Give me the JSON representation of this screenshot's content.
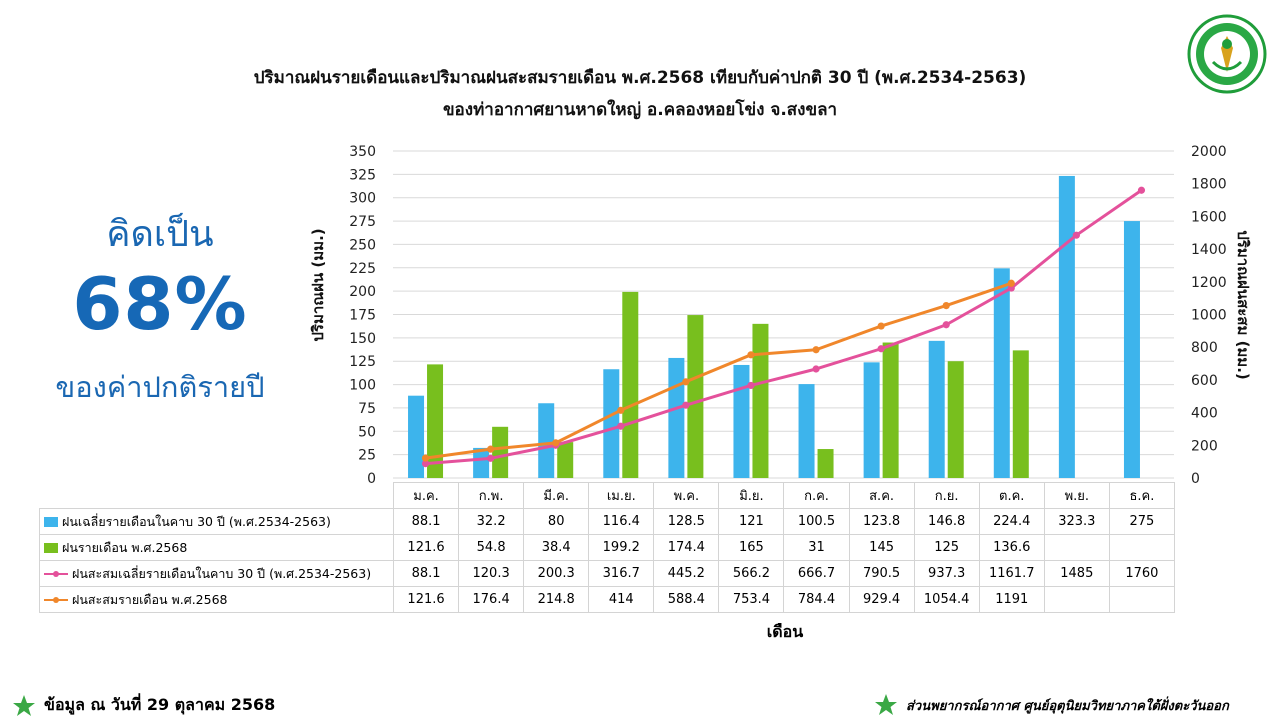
{
  "title": {
    "line1": "ปริมาณฝนรายเดือนและปริมาณฝนสะสมรายเดือน  พ.ศ.2568  เทียบกับค่าปกติ 30 ปี (พ.ศ.2534-2563)",
    "line2": "ของท่าอากาศยานหาดใหญ่  อ.คลองหอยโข่ง  จ.สงขลา"
  },
  "summary": {
    "prefix": "คิดเป็น",
    "percent": "68%",
    "suffix": "ของค่าปกติรายปี",
    "color": "#1a67b2"
  },
  "footer": {
    "left": "ข้อมูล ณ วันที่ 29 ตุลาคม 2568",
    "right": "ส่วนพยากรณ์อากาศ ศูนย์อุตุนิยมวิทยาภาคใต้ฝั่งตะวันออก",
    "icon": "green-star-icon"
  },
  "logo": {
    "icon": "tmd-emblem-icon",
    "color": "#1f9d3a"
  },
  "chart_data": {
    "type": "bar",
    "title": "ปริมาณฝนรายเดือนและปริมาณฝนสะสมรายเดือน  พ.ศ.2568  เทียบกับค่าปกติ 30 ปี (พ.ศ.2534-2563)",
    "xlabel": "เดือน",
    "ylabel": "ปริมาณฝน (มม.)",
    "y2label": "ปริมาณฝนสะสม (มม.)",
    "ylim": [
      0,
      350
    ],
    "yticks": [
      0,
      25,
      50,
      75,
      100,
      125,
      150,
      175,
      200,
      225,
      250,
      275,
      300,
      325,
      350
    ],
    "y2lim": [
      0,
      2000
    ],
    "y2ticks": [
      0,
      200,
      400,
      600,
      800,
      1000,
      1200,
      1400,
      1600,
      1800,
      2000
    ],
    "grid": true,
    "legend": "data-table",
    "categories": [
      "ม.ค.",
      "ก.พ.",
      "มี.ค.",
      "เม.ย.",
      "พ.ค.",
      "มิ.ย.",
      "ก.ค.",
      "ส.ค.",
      "ก.ย.",
      "ต.ค.",
      "พ.ย.",
      "ธ.ค."
    ],
    "series": [
      {
        "name": "ฝนเฉลี่ยรายเดือนในคาบ 30 ปี (พ.ศ.2534-2563)",
        "type": "bar",
        "axis": "left",
        "color": "#3db4ec",
        "values": [
          88.1,
          32.2,
          80,
          116.4,
          128.5,
          121,
          100.5,
          123.8,
          146.8,
          224.4,
          323.3,
          275
        ],
        "labels": [
          "88.1",
          "32.2",
          "80",
          "116.4",
          "128.5",
          "121",
          "100.5",
          "123.8",
          "146.8",
          "224.4",
          "323.3",
          "275"
        ]
      },
      {
        "name": "ฝนรายเดือน พ.ศ.2568",
        "type": "bar",
        "axis": "left",
        "color": "#78bf1e",
        "values": [
          121.6,
          54.8,
          38.4,
          199.2,
          174.4,
          165,
          31,
          145,
          125,
          136.6,
          null,
          null
        ],
        "labels": [
          "121.6",
          "54.8",
          "38.4",
          "199.2",
          "174.4",
          "165",
          "31",
          "145",
          "125",
          "136.6",
          "",
          ""
        ]
      },
      {
        "name": "ฝนสะสมเฉลี่ยรายเดือนในคาบ 30 ปี (พ.ศ.2534-2563)",
        "type": "line",
        "axis": "right",
        "color": "#e4519b",
        "values": [
          88.1,
          120.3,
          200.3,
          316.7,
          445.2,
          566.2,
          666.7,
          790.5,
          937.3,
          1161.7,
          1485,
          1760
        ],
        "labels": [
          "88.1",
          "120.3",
          "200.3",
          "316.7",
          "445.2",
          "566.2",
          "666.7",
          "790.5",
          "937.3",
          "1161.7",
          "1485",
          "1760"
        ]
      },
      {
        "name": "ฝนสะสมรายเดือน พ.ศ.2568",
        "type": "line",
        "axis": "right",
        "color": "#f0872b",
        "values": [
          121.6,
          176.4,
          214.8,
          414,
          588.4,
          753.4,
          784.4,
          929.4,
          1054.4,
          1191,
          null,
          null
        ],
        "labels": [
          "121.6",
          "176.4",
          "214.8",
          "414",
          "588.4",
          "753.4",
          "784.4",
          "929.4",
          "1054.4",
          "1191",
          "",
          ""
        ]
      }
    ]
  }
}
